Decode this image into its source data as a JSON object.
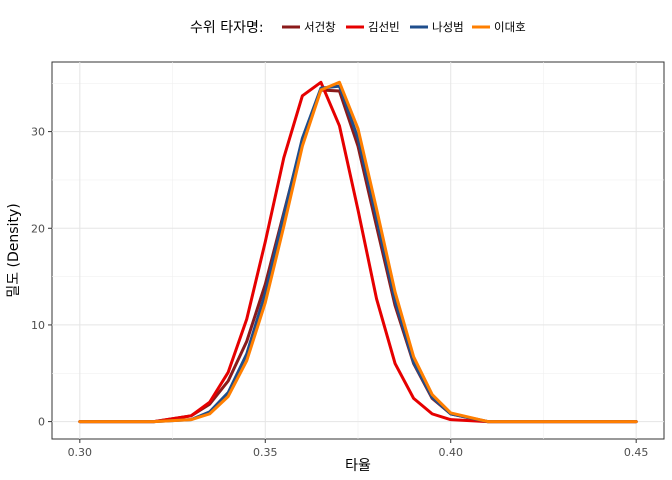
{
  "chart_data": {
    "type": "line",
    "title": "",
    "xlabel": "타율",
    "ylabel": "밀도 (Density)",
    "xlim": [
      0.2925,
      0.4575
    ],
    "ylim": [
      -1.8,
      37.2
    ],
    "xticks": [
      0.3,
      0.35,
      0.4,
      0.45
    ],
    "xtick_labels": [
      "0.30",
      "0.35",
      "0.40",
      "0.45"
    ],
    "yticks": [
      0,
      10,
      20,
      30
    ],
    "ytick_labels": [
      "0",
      "10",
      "20",
      "30"
    ],
    "grid": true,
    "legend": {
      "title": "수위 타자명:",
      "position": "top"
    },
    "series": [
      {
        "name": "서건창",
        "color": "#8b1a1a",
        "x": [
          0.3,
          0.32,
          0.33,
          0.335,
          0.34,
          0.345,
          0.35,
          0.355,
          0.36,
          0.365,
          0.37,
          0.375,
          0.38,
          0.385,
          0.39,
          0.395,
          0.4,
          0.41,
          0.42,
          0.45
        ],
        "y": [
          0,
          0,
          0.6,
          1.8,
          4.2,
          8.3,
          14.2,
          21.6,
          29.0,
          34.3,
          34.2,
          28.5,
          20.2,
          12.0,
          6.0,
          2.4,
          0.8,
          0,
          0,
          0
        ]
      },
      {
        "name": "김선빈",
        "color": "#e60000",
        "x": [
          0.3,
          0.32,
          0.33,
          0.335,
          0.34,
          0.345,
          0.35,
          0.355,
          0.36,
          0.365,
          0.37,
          0.375,
          0.38,
          0.385,
          0.39,
          0.395,
          0.4,
          0.41,
          0.42,
          0.45
        ],
        "y": [
          0,
          0,
          0.6,
          2.0,
          5.1,
          10.6,
          18.6,
          27.3,
          33.7,
          35.1,
          30.6,
          21.9,
          12.7,
          6.0,
          2.4,
          0.8,
          0.2,
          0,
          0,
          0
        ]
      },
      {
        "name": "나성범",
        "color": "#1f4e8c",
        "x": [
          0.3,
          0.32,
          0.33,
          0.335,
          0.34,
          0.345,
          0.35,
          0.355,
          0.36,
          0.365,
          0.37,
          0.375,
          0.38,
          0.385,
          0.39,
          0.395,
          0.4,
          0.41,
          0.42,
          0.45
        ],
        "y": [
          0,
          0,
          0.2,
          1.0,
          3.0,
          7.0,
          13.3,
          21.4,
          29.3,
          34.5,
          34.7,
          29.3,
          21.0,
          12.5,
          6.1,
          2.5,
          0.8,
          0,
          0,
          0
        ]
      },
      {
        "name": "이대호",
        "color": "#ff7f00",
        "x": [
          0.3,
          0.32,
          0.33,
          0.335,
          0.34,
          0.345,
          0.35,
          0.355,
          0.36,
          0.365,
          0.37,
          0.375,
          0.38,
          0.385,
          0.39,
          0.395,
          0.4,
          0.41,
          0.42,
          0.45
        ],
        "y": [
          0,
          0,
          0.2,
          0.8,
          2.6,
          6.3,
          12.3,
          20.2,
          28.5,
          34.3,
          35.1,
          30.3,
          22.0,
          13.4,
          6.7,
          2.8,
          0.9,
          0,
          0,
          0
        ]
      }
    ]
  }
}
